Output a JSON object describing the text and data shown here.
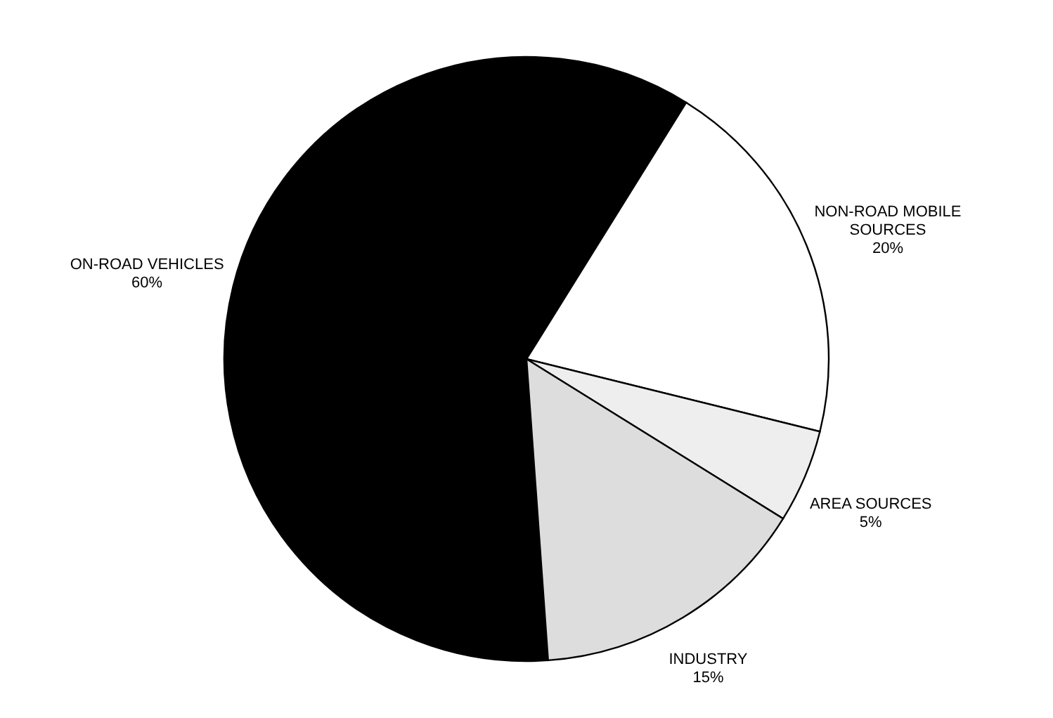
{
  "chart_data": {
    "type": "pie",
    "categories": [
      "ON-ROAD VEHICLES",
      "NON-ROAD MOBILE SOURCES",
      "AREA SOURCES",
      "INDUSTRY"
    ],
    "values": [
      60,
      20,
      5,
      15
    ],
    "colors": [
      "#000000",
      "#ffffff",
      "#eeeeee",
      "#dddddd"
    ],
    "value_labels": [
      "60%",
      "20%",
      "5%",
      "15%"
    ]
  }
}
